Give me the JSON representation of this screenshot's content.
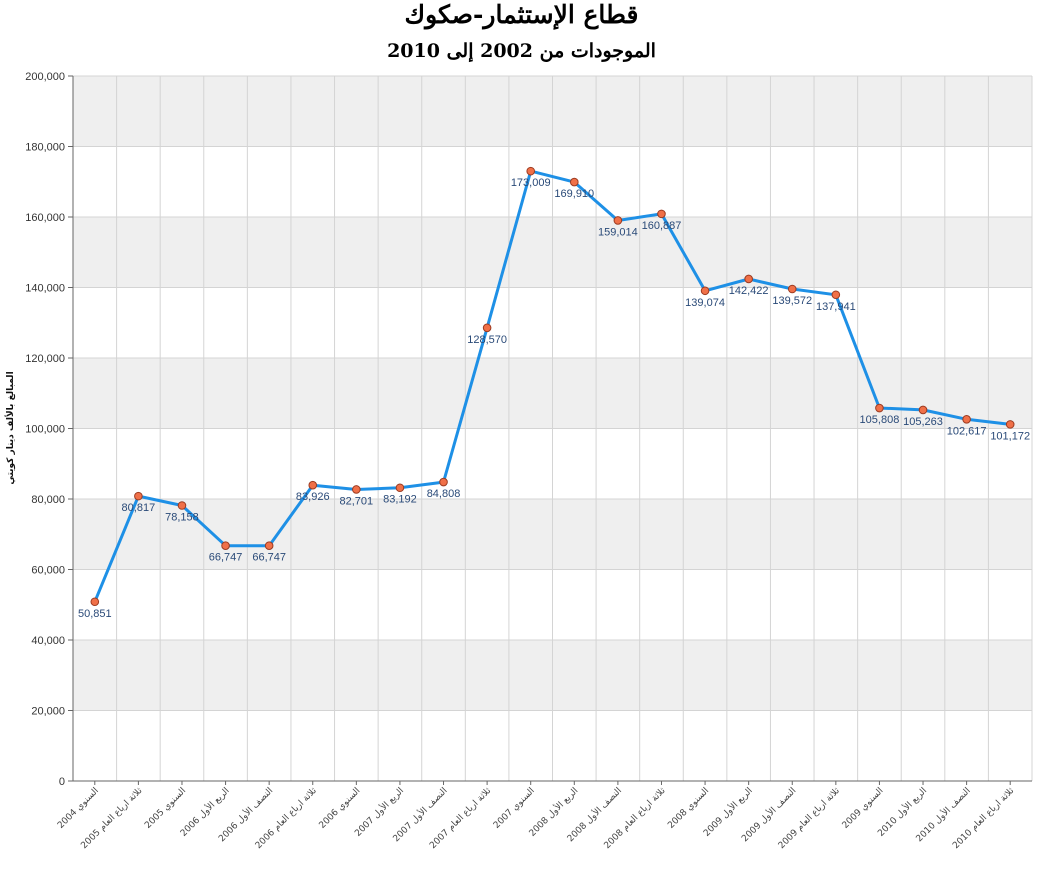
{
  "chart_data": {
    "type": "line",
    "title": "قطاع الإستثمار-صكوك",
    "subtitle": "الموجودات من 2002 إلى 2010",
    "ylabel": "المبالغ بالألف دينار كويتي",
    "xlabel": "",
    "ylim": [
      0,
      200000
    ],
    "yticks": [
      0,
      20000,
      40000,
      60000,
      80000,
      100000,
      120000,
      140000,
      160000,
      180000,
      200000
    ],
    "grid": true,
    "colors": {
      "line": "#1e90e6",
      "marker_fill": "#f07048",
      "marker_stroke": "#9b3a20",
      "band": "#efefef"
    },
    "categories": [
      "السنوي 2004",
      "ثلاثة ارباع العام 2005",
      "السنوي 2005",
      "الربع الأول 2006",
      "النصف الأول 2006",
      "ثلاثة ارباع العام 2006",
      "السنوي 2006",
      "الربع الأول 2007",
      "النصف الأول 2007",
      "ثلاثة ارباع العام 2007",
      "السنوي 2007",
      "الربع الأول 2008",
      "النصف الأول 2008",
      "ثلاثة ارباع العام 2008",
      "السنوي 2008",
      "الربع الأول 2009",
      "النصف الأول 2009",
      "ثلاثة ارباع العام 2009",
      "السنوي 2009",
      "الربع الأول 2010",
      "النصف الأول 2010",
      "ثلاثة ارباع العام 2010"
    ],
    "values": [
      50851,
      80817,
      78158,
      66747,
      66747,
      83926,
      82701,
      83192,
      84808,
      128570,
      173009,
      169910,
      159014,
      160887,
      139074,
      142422,
      139572,
      137941,
      105808,
      105263,
      102617,
      101172
    ],
    "value_labels": [
      "50,851",
      "80,817",
      "78,158",
      "66,747",
      "66,747",
      "83,926",
      "82,701",
      "83,192",
      "84,808",
      "128,570",
      "173,009",
      "169,910",
      "159,014",
      "160,887",
      "139,074",
      "142,422",
      "139,572",
      "137,941",
      "105,808",
      "105,263",
      "102,617",
      "101,172"
    ]
  }
}
